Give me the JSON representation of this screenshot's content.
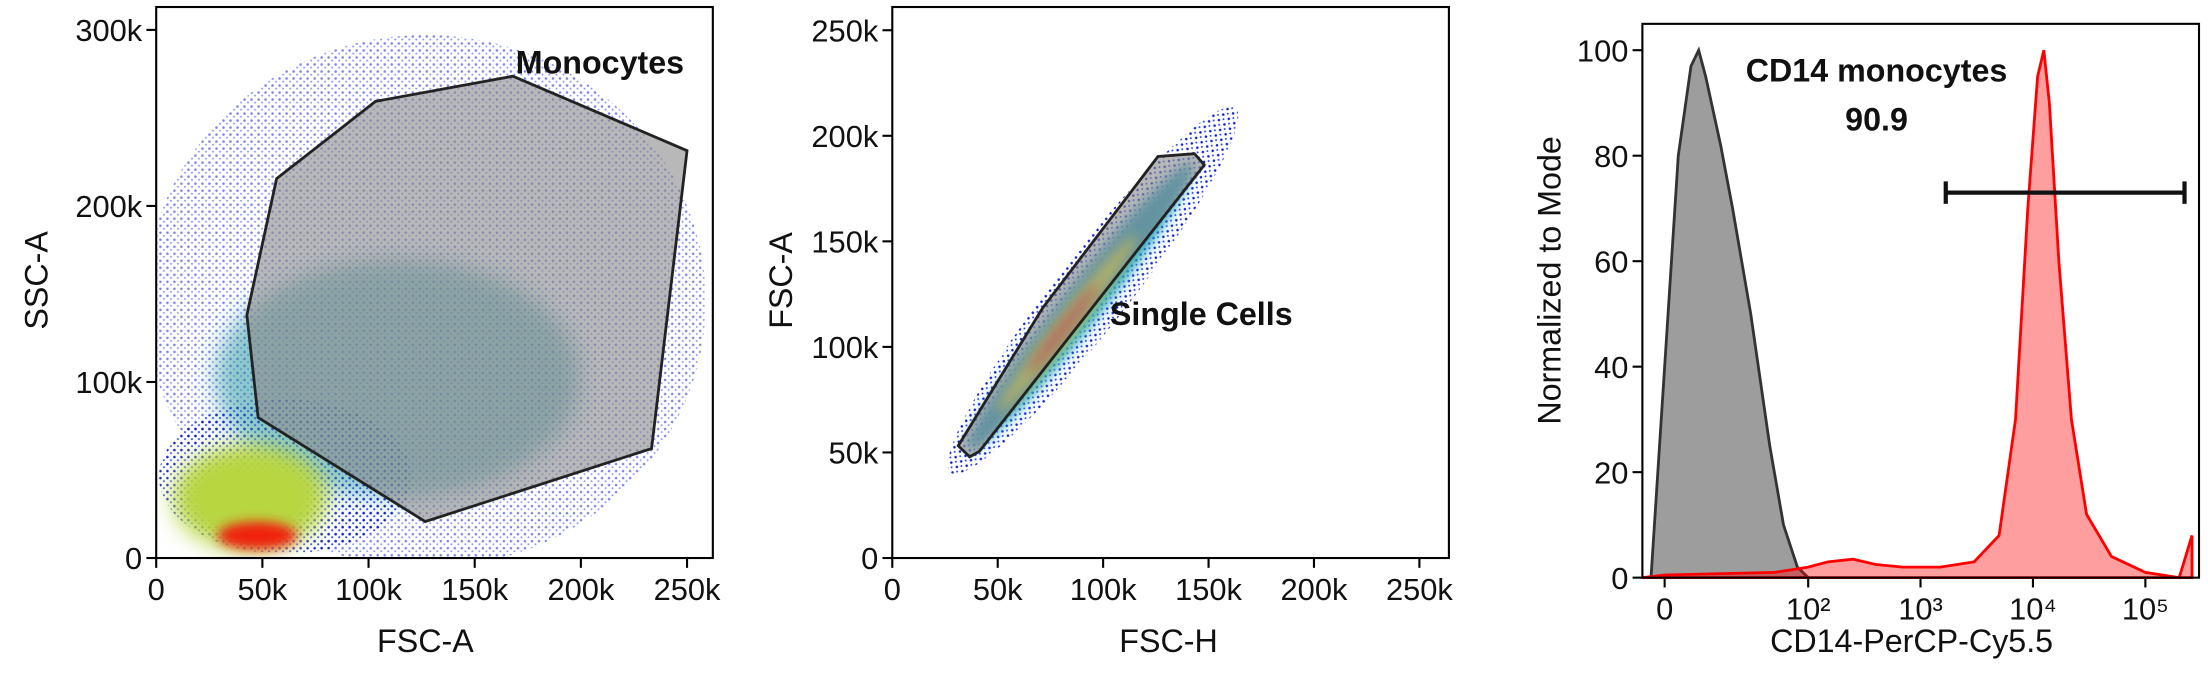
{
  "chart_data": [
    {
      "type": "density",
      "x_label": "FSC-A",
      "y_label": "SSC-A",
      "xlim": [
        0,
        262144
      ],
      "ylim": [
        0,
        313000
      ],
      "xticks": [
        0,
        {
          "value": 50000,
          "label": "50k"
        },
        {
          "value": 100000,
          "label": "100k"
        },
        {
          "value": 150000,
          "label": "150k"
        },
        {
          "value": 200000,
          "label": "200k"
        },
        {
          "value": 250000,
          "label": "250k"
        }
      ],
      "yticks": [
        0,
        {
          "value": 100000,
          "label": "100k"
        },
        {
          "value": 200000,
          "label": "200k"
        },
        {
          "value": 300000,
          "label": "300k"
        }
      ],
      "gate": {
        "name": "Monocytes",
        "x": [
          56700,
          103300,
          168000,
          250000,
          233300,
          126700,
          48000,
          42700
        ],
        "y": [
          215500,
          259400,
          273700,
          231400,
          62200,
          20700,
          79800,
          138000
        ]
      }
    },
    {
      "type": "density",
      "x_label": "FSC-H",
      "y_label": "FSC-A",
      "xlim": [
        0,
        264000
      ],
      "ylim": [
        0,
        261000
      ],
      "xticks": [
        0,
        {
          "value": 50000,
          "label": "50k"
        },
        {
          "value": 100000,
          "label": "100k"
        },
        {
          "value": 150000,
          "label": "150k"
        },
        {
          "value": 200000,
          "label": "200k"
        },
        {
          "value": 250000,
          "label": "250k"
        }
      ],
      "yticks": [
        0,
        {
          "value": 50000,
          "label": "50k"
        },
        {
          "value": 100000,
          "label": "100k"
        },
        {
          "value": 150000,
          "label": "150k"
        },
        {
          "value": 200000,
          "label": "200k"
        },
        {
          "value": 250000,
          "label": "250k"
        }
      ],
      "gate": {
        "name": "Single Cells",
        "x": [
          31300,
          36700,
          41300,
          148000,
          143300,
          126000,
          71300
        ],
        "y": [
          53200,
          47900,
          50500,
          186200,
          191500,
          190200,
          118400
        ]
      }
    },
    {
      "type": "area",
      "x_label": "CD14-PerCP-Cy5.5",
      "y_label": "Normalized to Mode",
      "xscale": "biexponential",
      "xlim": [
        -5,
        300000
      ],
      "ylim": [
        0,
        105
      ],
      "xticks": [
        0,
        {
          "value": 100,
          "label": "10²"
        },
        {
          "value": 1000,
          "label": "10³"
        },
        {
          "value": 10000,
          "label": "10⁴"
        },
        {
          "value": 100000,
          "label": "10⁵"
        }
      ],
      "yticks": [
        0,
        20,
        40,
        60,
        80,
        100
      ],
      "series": [
        {
          "color": "#8c8c8c",
          "x": [
            -3,
            0,
            3,
            6,
            8,
            10,
            15,
            20,
            30,
            45,
            60,
            80,
            100
          ],
          "values": [
            0,
            40,
            80,
            97,
            100,
            95,
            82,
            70,
            50,
            25,
            10,
            2,
            0
          ]
        },
        {
          "color": "#ff0000",
          "x": [
            -5,
            0,
            50,
            100,
            150,
            250,
            400,
            700,
            1500,
            3000,
            5000,
            7000,
            9000,
            11000,
            12500,
            14000,
            17000,
            22000,
            30000,
            50000,
            100000,
            200000,
            260000
          ],
          "values": [
            0,
            0.5,
            1,
            2,
            3,
            3.5,
            2.5,
            2,
            2,
            3,
            8,
            30,
            70,
            95,
            100,
            90,
            60,
            30,
            12,
            4,
            1,
            0,
            8
          ]
        }
      ],
      "gate": {
        "name": "CD14 monocytes",
        "value": 90.9,
        "x": [
          1677,
          223000
        ],
        "y": 73
      }
    }
  ]
}
